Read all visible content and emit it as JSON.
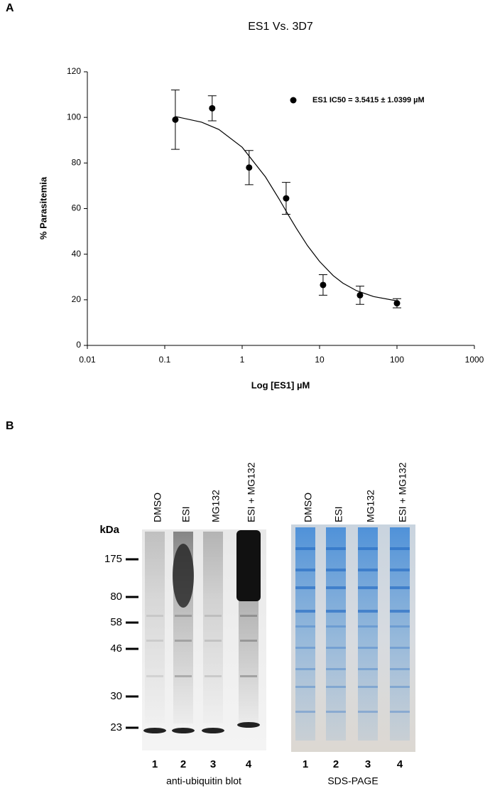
{
  "chart_data": {
    "type": "scatter",
    "panel_label": "A",
    "title": "ES1 Vs. 3D7",
    "x_label": "Log [ES1] µM",
    "y_label": "% Parasitemia",
    "log_x": true,
    "xlim": [
      0.01,
      1000
    ],
    "xticks": [
      0.01,
      0.1,
      1,
      10,
      100,
      1000
    ],
    "ylim": [
      0,
      120
    ],
    "yticks": [
      0,
      20,
      40,
      60,
      80,
      100,
      120
    ],
    "series": [
      {
        "name": "ES1 IC50 = 3.5415 ± 1.0399 µM",
        "color": "#000000",
        "x": [
          0.137,
          0.41,
          1.23,
          3.7,
          11.1,
          33.3,
          100
        ],
        "values": [
          99,
          104,
          78,
          64.5,
          26.5,
          22,
          18.5
        ],
        "errors": [
          13,
          5.5,
          7.5,
          7,
          4.5,
          4,
          2
        ]
      }
    ],
    "curve": {
      "x": [
        0.137,
        0.3,
        0.5,
        1,
        2,
        3,
        4,
        5,
        7,
        10,
        15,
        20,
        30,
        50,
        100
      ],
      "values": [
        100.4,
        97.9,
        94.7,
        86.9,
        73.9,
        64.2,
        56.9,
        51.4,
        43.7,
        36.8,
        30.6,
        27.3,
        24.0,
        21.4,
        19.5
      ]
    }
  },
  "panel_b": {
    "label": "B",
    "kda": "kDa",
    "markers": [
      175,
      80,
      58,
      46,
      30,
      23
    ],
    "blot": {
      "lanes": [
        "DMSO",
        "ESI",
        "MG132",
        "ESI + MG132"
      ],
      "numbers": [
        1,
        2,
        3,
        4
      ],
      "caption": "anti-ubiquitin blot"
    },
    "gel": {
      "lanes": [
        "DMSO",
        "ESI",
        "MG132",
        "ESI + MG132"
      ],
      "numbers": [
        1,
        2,
        3,
        4
      ],
      "caption": "SDS-PAGE"
    }
  }
}
